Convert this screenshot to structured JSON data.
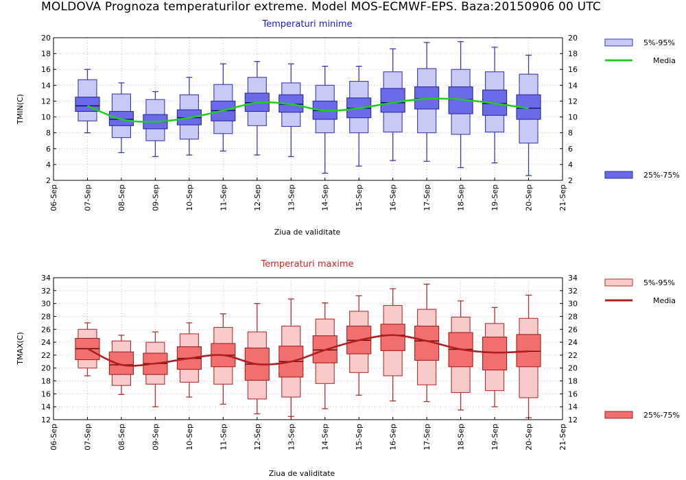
{
  "main_title": "MOLDOVA  Prognoza temperaturilor extreme.  Model MOS-ECMWF-EPS. Baza:20150906 00 UTC",
  "chart_data": [
    {
      "type": "box",
      "title": "Temperaturi minime",
      "xlabel": "Ziua de validitate",
      "ylabel": "TMIN(C)",
      "ylim": [
        2,
        20
      ],
      "yticks": [
        2,
        4,
        6,
        8,
        10,
        12,
        14,
        16,
        18,
        20
      ],
      "grid": true,
      "color_box": "#6b6bea",
      "color_whisker_box": "#c9c9f5",
      "color_line": "#22cc22",
      "x_tick_labels": [
        "06-Sep",
        "07-Sep",
        "08-Sep",
        "09-Sep",
        "10-Sep",
        "11-Sep",
        "12-Sep",
        "13-Sep",
        "14-Sep",
        "15-Sep",
        "16-Sep",
        "17-Sep",
        "18-Sep",
        "19-Sep",
        "20-Sep",
        "21-Sep"
      ],
      "categories": [
        "07-Sep",
        "08-Sep",
        "09-Sep",
        "10-Sep",
        "11-Sep",
        "12-Sep",
        "13-Sep",
        "14-Sep",
        "15-Sep",
        "16-Sep",
        "17-Sep",
        "18-Sep",
        "19-Sep",
        "20-Sep"
      ],
      "boxes": [
        {
          "min": 8.0,
          "p5": 9.5,
          "q1": 10.7,
          "median": 11.4,
          "q3": 12.5,
          "p95": 14.7,
          "max": 16.0
        },
        {
          "min": 5.5,
          "p5": 7.4,
          "q1": 8.9,
          "median": 9.7,
          "q3": 10.7,
          "p95": 12.9,
          "max": 14.3
        },
        {
          "min": 5.0,
          "p5": 7.0,
          "q1": 8.5,
          "median": 9.4,
          "q3": 10.3,
          "p95": 12.2,
          "max": 13.2
        },
        {
          "min": 5.2,
          "p5": 7.2,
          "q1": 9.0,
          "median": 9.9,
          "q3": 10.9,
          "p95": 12.8,
          "max": 15.0
        },
        {
          "min": 5.7,
          "p5": 7.9,
          "q1": 9.5,
          "median": 10.8,
          "q3": 12.0,
          "p95": 14.1,
          "max": 16.7
        },
        {
          "min": 5.2,
          "p5": 8.9,
          "q1": 10.7,
          "median": 11.8,
          "q3": 13.0,
          "p95": 15.0,
          "max": 17.0
        },
        {
          "min": 5.0,
          "p5": 8.8,
          "q1": 10.6,
          "median": 11.6,
          "q3": 12.8,
          "p95": 14.3,
          "max": 16.7
        },
        {
          "min": 2.9,
          "p5": 8.0,
          "q1": 9.7,
          "median": 10.8,
          "q3": 12.0,
          "p95": 14.0,
          "max": 16.4
        },
        {
          "min": 3.8,
          "p5": 8.0,
          "q1": 9.9,
          "median": 11.1,
          "q3": 12.4,
          "p95": 14.5,
          "max": 16.4
        },
        {
          "min": 4.5,
          "p5": 8.1,
          "q1": 10.6,
          "median": 11.8,
          "q3": 13.6,
          "p95": 15.7,
          "max": 18.6
        },
        {
          "min": 4.4,
          "p5": 8.0,
          "q1": 11.0,
          "median": 12.3,
          "q3": 13.8,
          "p95": 16.1,
          "max": 19.4
        },
        {
          "min": 3.6,
          "p5": 7.8,
          "q1": 10.4,
          "median": 12.2,
          "q3": 13.8,
          "p95": 16.0,
          "max": 19.5
        },
        {
          "min": 4.2,
          "p5": 8.1,
          "q1": 10.2,
          "median": 11.7,
          "q3": 13.4,
          "p95": 15.7,
          "max": 18.8
        },
        {
          "min": 2.6,
          "p5": 6.7,
          "q1": 9.7,
          "median": 11.1,
          "q3": 12.8,
          "p95": 15.4,
          "max": 17.8
        }
      ],
      "legend": {
        "items": [
          "5%-95%",
          "Media",
          "25%-75%"
        ],
        "position": "right"
      }
    },
    {
      "type": "box",
      "title": "Temperaturi maxime",
      "xlabel": "Ziua de validitate",
      "ylabel": "TMAX(C)",
      "ylim": [
        12,
        34
      ],
      "yticks": [
        12,
        14,
        16,
        18,
        20,
        22,
        24,
        26,
        28,
        30,
        32,
        34
      ],
      "grid": true,
      "color_box": "#f26f6f",
      "color_whisker_box": "#f8caca",
      "color_line": "#b01e1e",
      "x_tick_labels": [
        "06-Sep",
        "07-Sep",
        "08-Sep",
        "09-Sep",
        "10-Sep",
        "11-Sep",
        "12-Sep",
        "13-Sep",
        "14-Sep",
        "15-Sep",
        "16-Sep",
        "17-Sep",
        "18-Sep",
        "19-Sep",
        "20-Sep",
        "21-Sep"
      ],
      "categories": [
        "07-Sep",
        "08-Sep",
        "09-Sep",
        "10-Sep",
        "11-Sep",
        "12-Sep",
        "13-Sep",
        "14-Sep",
        "15-Sep",
        "16-Sep",
        "17-Sep",
        "18-Sep",
        "19-Sep",
        "20-Sep"
      ],
      "boxes": [
        {
          "min": 18.8,
          "p5": 20.0,
          "q1": 21.3,
          "median": 23.0,
          "q3": 24.6,
          "p95": 26.0,
          "max": 27.0
        },
        {
          "min": 15.9,
          "p5": 17.3,
          "q1": 19.0,
          "median": 20.5,
          "q3": 22.5,
          "p95": 24.2,
          "max": 25.1
        },
        {
          "min": 14.0,
          "p5": 17.5,
          "q1": 19.0,
          "median": 20.7,
          "q3": 22.3,
          "p95": 24.0,
          "max": 25.6
        },
        {
          "min": 15.5,
          "p5": 17.8,
          "q1": 19.8,
          "median": 21.5,
          "q3": 23.3,
          "p95": 25.3,
          "max": 27.0
        },
        {
          "min": 14.4,
          "p5": 17.5,
          "q1": 20.2,
          "median": 22.0,
          "q3": 23.8,
          "p95": 26.3,
          "max": 28.4
        },
        {
          "min": 12.9,
          "p5": 15.2,
          "q1": 18.1,
          "median": 20.6,
          "q3": 23.1,
          "p95": 25.6,
          "max": 30.0
        },
        {
          "min": 12.5,
          "p5": 15.5,
          "q1": 18.6,
          "median": 21.0,
          "q3": 23.4,
          "p95": 26.5,
          "max": 30.7
        },
        {
          "min": 13.7,
          "p5": 17.6,
          "q1": 20.8,
          "median": 22.8,
          "q3": 25.0,
          "p95": 27.6,
          "max": 30.1
        },
        {
          "min": 15.8,
          "p5": 19.3,
          "q1": 22.2,
          "median": 24.3,
          "q3": 26.5,
          "p95": 28.8,
          "max": 31.2
        },
        {
          "min": 14.9,
          "p5": 18.8,
          "q1": 22.7,
          "median": 25.1,
          "q3": 26.8,
          "p95": 29.7,
          "max": 32.3
        },
        {
          "min": 14.8,
          "p5": 17.4,
          "q1": 21.2,
          "median": 24.2,
          "q3": 26.5,
          "p95": 29.1,
          "max": 33.0
        },
        {
          "min": 13.5,
          "p5": 16.2,
          "q1": 20.2,
          "median": 22.9,
          "q3": 25.5,
          "p95": 27.9,
          "max": 30.4
        },
        {
          "min": 14.0,
          "p5": 16.5,
          "q1": 19.7,
          "median": 22.4,
          "q3": 24.8,
          "p95": 26.9,
          "max": 29.4
        },
        {
          "min": 12.3,
          "p5": 15.4,
          "q1": 20.2,
          "median": 22.6,
          "q3": 25.2,
          "p95": 27.7,
          "max": 31.3
        }
      ],
      "legend": {
        "items": [
          "5%-95%",
          "Media",
          "25%-75%"
        ],
        "position": "right"
      }
    }
  ]
}
